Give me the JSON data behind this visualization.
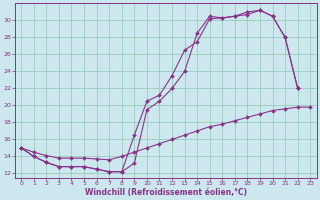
{
  "xlabel": "Windchill (Refroidissement éolien,°C)",
  "bg_color": "#cce8ee",
  "line_color": "#883388",
  "grid_color": "#99ccbb",
  "xlim": [
    -0.5,
    23.5
  ],
  "ylim": [
    11.5,
    32
  ],
  "xticks": [
    0,
    1,
    2,
    3,
    4,
    5,
    6,
    7,
    8,
    9,
    10,
    11,
    12,
    13,
    14,
    15,
    16,
    17,
    18,
    19,
    20,
    21,
    22,
    23
  ],
  "yticks": [
    12,
    14,
    16,
    18,
    20,
    22,
    24,
    26,
    28,
    30
  ],
  "line1_x": [
    0,
    1,
    2,
    3,
    4,
    5,
    6,
    7,
    8,
    9,
    10,
    11,
    12,
    13,
    14,
    15,
    16,
    17,
    18,
    19,
    20,
    21,
    22
  ],
  "line1_y": [
    15.0,
    14.0,
    13.3,
    12.8,
    12.8,
    12.8,
    12.5,
    12.2,
    12.2,
    16.5,
    20.5,
    21.2,
    23.5,
    26.5,
    27.5,
    30.2,
    30.3,
    30.5,
    31.0,
    31.2,
    30.5,
    28.0,
    22.0
  ],
  "line2_x": [
    0,
    1,
    2,
    3,
    4,
    5,
    6,
    7,
    8,
    9,
    10,
    11,
    12,
    13,
    14,
    15,
    16,
    17,
    18,
    19,
    20,
    21,
    22
  ],
  "line2_y": [
    15.0,
    14.0,
    13.3,
    12.8,
    12.8,
    12.8,
    12.5,
    12.2,
    12.2,
    13.2,
    19.5,
    20.5,
    22.0,
    24.0,
    28.5,
    30.5,
    30.3,
    30.5,
    30.7,
    31.2,
    30.5,
    28.0,
    22.0
  ],
  "line3_x": [
    0,
    1,
    2,
    3,
    4,
    5,
    6,
    7,
    8,
    9,
    10,
    11,
    12,
    13,
    14,
    15,
    16,
    17,
    18,
    19,
    20,
    21,
    22,
    23
  ],
  "line3_y": [
    15.0,
    14.5,
    14.1,
    13.8,
    13.8,
    13.8,
    13.7,
    13.6,
    14.0,
    14.5,
    15.0,
    15.5,
    16.0,
    16.5,
    17.0,
    17.5,
    17.8,
    18.2,
    18.6,
    19.0,
    19.4,
    19.6,
    19.8,
    19.8
  ]
}
